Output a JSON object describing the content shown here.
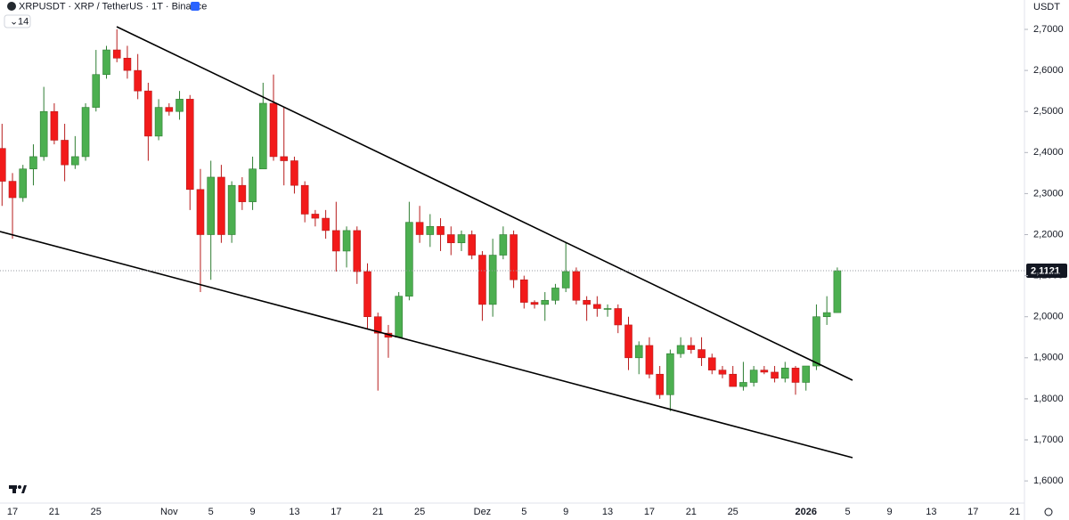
{
  "chart_data": {
    "type": "candlestick",
    "title": "XRPUSDT · XRP / TetherUS · 1T · Binance",
    "indicator_count": "14",
    "currency": "USDT",
    "categories": [
      null,
      "17",
      null,
      null,
      null,
      "21",
      null,
      null,
      null,
      "25",
      null,
      null,
      null,
      null,
      null,
      null,
      "Nov",
      null,
      null,
      null,
      "5",
      null,
      null,
      null,
      "9",
      null,
      null,
      null,
      "13",
      null,
      null,
      null,
      "17",
      null,
      null,
      null,
      "21",
      null,
      null,
      null,
      "25",
      null,
      null,
      null,
      null,
      null,
      "Dez",
      null,
      null,
      null,
      "5",
      null,
      null,
      null,
      "9",
      null,
      null,
      null,
      "13",
      null,
      null,
      null,
      "17",
      null,
      null,
      null,
      "21",
      null,
      null,
      null,
      "25",
      null,
      null,
      null,
      null,
      null,
      null,
      "2026",
      null,
      null,
      null,
      "5",
      null,
      null,
      null,
      "9",
      null,
      null,
      null,
      "13",
      null,
      null,
      null,
      "17",
      null,
      null,
      null,
      "21",
      null
    ],
    "open": [
      2.41,
      2.33,
      2.29,
      2.36,
      2.39,
      2.5,
      2.43,
      2.37,
      2.39,
      2.51,
      2.59,
      2.65,
      2.63,
      2.6,
      2.55,
      2.44,
      2.51,
      2.5,
      2.53,
      2.31,
      2.2,
      2.34,
      2.2,
      2.32,
      2.28,
      2.36,
      2.52,
      2.39,
      2.38,
      2.32,
      2.25,
      2.24,
      2.21,
      2.16,
      2.21,
      2.11,
      2.0,
      1.96,
      1.95,
      2.05,
      2.23,
      2.2,
      2.22,
      2.2,
      2.18,
      2.2,
      2.15,
      2.03,
      2.15,
      2.2,
      2.09,
      2.035,
      2.03,
      2.04,
      2.07,
      2.11,
      2.04,
      2.03,
      2.02,
      2.02,
      1.98,
      1.9,
      1.93,
      1.86,
      1.81,
      1.91,
      1.93,
      1.92,
      1.9,
      1.87,
      1.86,
      1.83,
      1.84,
      1.87,
      1.865,
      1.85,
      1.875,
      1.84,
      1.88,
      2.0,
      2.01,
      null,
      null,
      null,
      null,
      null,
      null,
      null,
      null,
      null,
      null,
      null,
      null,
      null,
      null,
      null,
      null,
      null,
      null
    ],
    "high": [
      2.47,
      2.35,
      2.37,
      2.42,
      2.56,
      2.52,
      2.47,
      2.44,
      2.52,
      2.65,
      2.66,
      2.7,
      2.66,
      2.64,
      2.57,
      2.53,
      2.52,
      2.55,
      2.54,
      2.36,
      2.38,
      2.37,
      2.33,
      2.34,
      2.39,
      2.57,
      2.59,
      2.51,
      2.39,
      2.33,
      2.26,
      2.26,
      2.28,
      2.22,
      2.22,
      2.13,
      2.01,
      1.98,
      2.06,
      2.28,
      2.27,
      2.25,
      2.24,
      2.22,
      2.21,
      2.21,
      2.16,
      2.19,
      2.22,
      2.21,
      2.1,
      2.04,
      2.06,
      2.08,
      2.18,
      2.12,
      2.05,
      2.05,
      2.03,
      2.03,
      2.0,
      1.94,
      1.95,
      1.88,
      1.92,
      1.95,
      1.95,
      1.95,
      1.91,
      1.88,
      1.88,
      1.89,
      1.88,
      1.88,
      1.88,
      1.89,
      1.88,
      1.88,
      2.03,
      2.05,
      2.12,
      null,
      null,
      null,
      null,
      null,
      null,
      null,
      null,
      null,
      null,
      null,
      null,
      null,
      null,
      null,
      null,
      null,
      null
    ],
    "low": [
      2.27,
      2.19,
      2.28,
      2.32,
      2.38,
      2.42,
      2.33,
      2.36,
      2.38,
      2.5,
      2.58,
      2.62,
      2.58,
      2.53,
      2.38,
      2.43,
      2.49,
      2.48,
      2.26,
      2.06,
      2.09,
      2.18,
      2.18,
      2.26,
      2.26,
      2.36,
      2.38,
      2.32,
      2.3,
      2.23,
      2.22,
      2.19,
      2.11,
      2.12,
      2.08,
      1.97,
      1.82,
      1.9,
      1.95,
      2.04,
      2.18,
      2.17,
      2.16,
      2.15,
      2.16,
      2.14,
      1.99,
      2.0,
      2.14,
      2.07,
      2.02,
      2.02,
      1.99,
      2.03,
      2.06,
      2.03,
      1.99,
      2.0,
      2.0,
      1.96,
      1.87,
      1.86,
      1.85,
      1.8,
      1.77,
      1.9,
      1.91,
      1.88,
      1.86,
      1.85,
      1.83,
      1.82,
      1.83,
      1.86,
      1.84,
      1.84,
      1.81,
      1.82,
      1.87,
      1.98,
      2.01,
      null,
      null,
      null,
      null,
      null,
      null,
      null,
      null,
      null,
      null,
      null,
      null,
      null,
      null,
      null,
      null,
      null,
      null
    ],
    "close": [
      2.33,
      2.29,
      2.36,
      2.39,
      2.5,
      2.43,
      2.37,
      2.39,
      2.51,
      2.59,
      2.65,
      2.63,
      2.6,
      2.55,
      2.44,
      2.51,
      2.5,
      2.53,
      2.31,
      2.2,
      2.34,
      2.2,
      2.32,
      2.28,
      2.36,
      2.52,
      2.39,
      2.38,
      2.32,
      2.25,
      2.24,
      2.21,
      2.16,
      2.21,
      2.11,
      2.0,
      1.96,
      1.95,
      2.05,
      2.23,
      2.2,
      2.22,
      2.2,
      2.18,
      2.2,
      2.15,
      2.03,
      2.15,
      2.2,
      2.09,
      2.035,
      2.03,
      2.04,
      2.07,
      2.11,
      2.04,
      2.03,
      2.02,
      2.02,
      1.98,
      1.9,
      1.93,
      1.86,
      1.81,
      1.91,
      1.93,
      1.92,
      1.9,
      1.87,
      1.86,
      1.83,
      1.84,
      1.87,
      1.865,
      1.85,
      1.875,
      1.84,
      1.88,
      2.0,
      2.01,
      2.1121,
      null,
      null,
      null,
      null,
      null,
      null,
      null,
      null,
      null,
      null,
      null,
      null,
      null,
      null,
      null,
      null,
      null,
      null
    ],
    "up_color": "#4caf50",
    "down_color": "#f21a1a",
    "ylim": [
      1.546,
      2.7716
    ],
    "yticks": [
      {
        "value": 1.6,
        "label": "1,6000"
      },
      {
        "value": 1.7,
        "label": "1,7000"
      },
      {
        "value": 1.8,
        "label": "1,8000"
      },
      {
        "value": 1.9,
        "label": "1,9000"
      },
      {
        "value": 2.0,
        "label": "2,0000"
      },
      {
        "value": 2.1,
        "label": "2,1000"
      },
      {
        "value": 2.2,
        "label": "2,2000"
      },
      {
        "value": 2.3,
        "label": "2,3000"
      },
      {
        "value": 2.4,
        "label": "2,4000"
      },
      {
        "value": 2.5,
        "label": "2,5000"
      },
      {
        "value": 2.6,
        "label": "2,6000"
      },
      {
        "value": 2.7,
        "label": "2,7000"
      }
    ],
    "last_price": {
      "value": 2.1121,
      "label": "2,1121"
    },
    "grid": false
  }
}
